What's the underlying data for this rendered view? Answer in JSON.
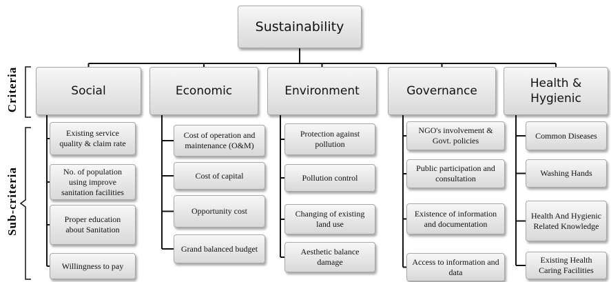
{
  "title": "Sustainability",
  "side_labels": {
    "criteria": "Criteria",
    "sub_criteria": "Sub-criteria"
  },
  "criteria": [
    {
      "label": "Social",
      "sub_criteria": [
        "Existing service quality & claim rate",
        "No. of population using improve sanitation facilities",
        "Proper education about Sanitation",
        "Willingness to pay"
      ]
    },
    {
      "label": "Economic",
      "sub_criteria": [
        "Cost of operation and maintenance (O&M)",
        "Cost of capital",
        "Opportunity cost",
        "Grand balanced budget"
      ]
    },
    {
      "label": "Environment",
      "sub_criteria": [
        "Protection against pollution",
        "Pollution control",
        "Changing of existing land use",
        "Aesthetic balance damage"
      ]
    },
    {
      "label": "Governance",
      "sub_criteria": [
        "NGO's involvement & Govt. policies",
        "Public participation and consultation",
        "Existence of information and documentation",
        "Access to information and data"
      ]
    },
    {
      "label": "Health & Hygienic",
      "sub_criteria": [
        "Common Diseases",
        "Washing Hands",
        "Health And Hygienic Related Knowledge",
        "Existing Health Caring Facilities"
      ]
    }
  ]
}
